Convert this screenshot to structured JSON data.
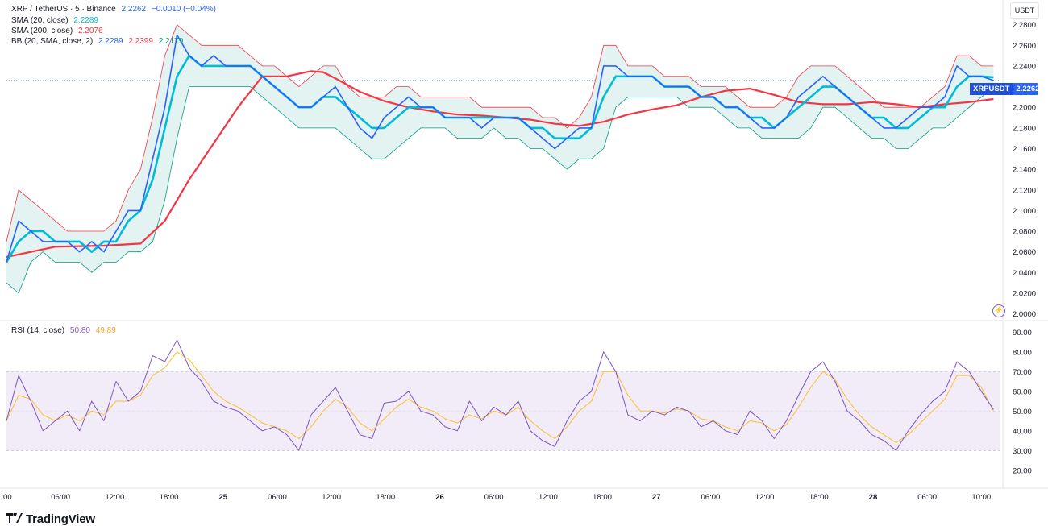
{
  "legend": {
    "symbol": "XRP / TetherUS · 5 · Binance",
    "last": "2.2262",
    "change": "−0.0010 (−0.04%)",
    "sma20_label": "SMA (20, close)",
    "sma20_value": "2.2289",
    "sma200_label": "SMA (200, close)",
    "sma200_value": "2.2076",
    "bb_label": "BB (20, SMA, close, 2)",
    "bb_basis": "2.2289",
    "bb_upper": "2.2399",
    "bb_lower": "2.2179",
    "rsi_label": "RSI (14, close)",
    "rsi_value": "50.80",
    "rsi_ma": "49.89"
  },
  "currency": "USDT",
  "price_tag": {
    "symbol": "XRPUSDT",
    "value": "2.2262"
  },
  "logo": "TradingView",
  "icons": {
    "alert": "lightning-alert-icon",
    "logo": "tradingview-logo-icon"
  },
  "colors": {
    "price": "#2962ff",
    "sma20": "#00bcd4",
    "sma200": "#f23645",
    "bb_upper": "#f23645",
    "bb_lower": "#089981",
    "bb_fill": "#e0f2ef",
    "rsi": "#7e57c2",
    "rsi_ma": "#fbc02d",
    "rsi_band": "#ede7f6"
  },
  "chart_data": {
    "type": "line",
    "x_ticks": [
      ":00",
      "06:00",
      "12:00",
      "18:00",
      "25",
      "06:00",
      "12:00",
      "18:00",
      "26",
      "06:00",
      "12:00",
      "18:00",
      "27",
      "06:00",
      "12:00",
      "18:00",
      "28",
      "06:00",
      "10:00"
    ],
    "price_ticks": [
      "2.2800",
      "2.2600",
      "2.2400",
      "2.2200",
      "2.2000",
      "2.1800",
      "2.1600",
      "2.1400",
      "2.1200",
      "2.1000",
      "2.0800",
      "2.0600",
      "2.0400",
      "2.0200",
      "2.0000"
    ],
    "price_ylim": [
      1.995,
      2.293
    ],
    "rsi_ticks": [
      "90.00",
      "80.00",
      "70.00",
      "60.00",
      "50.00",
      "40.00",
      "30.00",
      "20.00"
    ],
    "rsi_ylim": [
      15,
      95
    ],
    "rsi_bands": [
      70,
      50,
      30
    ],
    "t_range": [
      0,
      81.5
    ],
    "series": [
      {
        "name": "XRP / TetherUS",
        "t": [
          0,
          1,
          2,
          3,
          4,
          5,
          6,
          7,
          8,
          9,
          10,
          11,
          12,
          13,
          14,
          15,
          16,
          17,
          18,
          19,
          20,
          21,
          22,
          23,
          24,
          25,
          26,
          27,
          28,
          29,
          30,
          31,
          32,
          33,
          34,
          35,
          36,
          37,
          38,
          39,
          40,
          41,
          42,
          43,
          44,
          45,
          46,
          47,
          48,
          49,
          50,
          51,
          52,
          53,
          54,
          55,
          56,
          57,
          58,
          59,
          60,
          61,
          62,
          63,
          64,
          65,
          66,
          67,
          68,
          69,
          70,
          71,
          72,
          73,
          74,
          75,
          76,
          77,
          78,
          79,
          80,
          81
        ],
        "values": [
          2.05,
          2.09,
          2.08,
          2.07,
          2.07,
          2.07,
          2.06,
          2.07,
          2.06,
          2.08,
          2.1,
          2.1,
          2.15,
          2.2,
          2.27,
          2.25,
          2.24,
          2.25,
          2.24,
          2.24,
          2.24,
          2.23,
          2.22,
          2.21,
          2.2,
          2.2,
          2.21,
          2.22,
          2.2,
          2.18,
          2.17,
          2.19,
          2.2,
          2.21,
          2.2,
          2.2,
          2.19,
          2.19,
          2.19,
          2.18,
          2.19,
          2.19,
          2.19,
          2.18,
          2.17,
          2.16,
          2.17,
          2.18,
          2.18,
          2.24,
          2.24,
          2.23,
          2.23,
          2.23,
          2.22,
          2.22,
          2.22,
          2.21,
          2.21,
          2.2,
          2.2,
          2.19,
          2.18,
          2.18,
          2.19,
          2.21,
          2.22,
          2.23,
          2.22,
          2.21,
          2.2,
          2.19,
          2.18,
          2.18,
          2.19,
          2.2,
          2.2,
          2.21,
          2.24,
          2.23,
          2.23,
          2.226
        ]
      },
      {
        "name": "SMA (20, close)",
        "t": [
          0,
          1,
          2,
          3,
          4,
          5,
          6,
          7,
          8,
          9,
          10,
          11,
          12,
          13,
          14,
          15,
          16,
          17,
          18,
          19,
          20,
          21,
          22,
          23,
          24,
          25,
          26,
          27,
          28,
          29,
          30,
          31,
          32,
          33,
          34,
          35,
          36,
          37,
          38,
          39,
          40,
          41,
          42,
          43,
          44,
          45,
          46,
          47,
          48,
          49,
          50,
          51,
          52,
          53,
          54,
          55,
          56,
          57,
          58,
          59,
          60,
          61,
          62,
          63,
          64,
          65,
          66,
          67,
          68,
          69,
          70,
          71,
          72,
          73,
          74,
          75,
          76,
          77,
          78,
          79,
          80,
          81
        ],
        "values": [
          2.05,
          2.07,
          2.08,
          2.08,
          2.07,
          2.07,
          2.07,
          2.06,
          2.07,
          2.07,
          2.09,
          2.1,
          2.13,
          2.18,
          2.23,
          2.25,
          2.24,
          2.24,
          2.24,
          2.24,
          2.24,
          2.23,
          2.22,
          2.21,
          2.2,
          2.2,
          2.21,
          2.21,
          2.2,
          2.19,
          2.18,
          2.18,
          2.19,
          2.2,
          2.2,
          2.2,
          2.19,
          2.19,
          2.19,
          2.19,
          2.19,
          2.19,
          2.19,
          2.18,
          2.18,
          2.17,
          2.17,
          2.17,
          2.18,
          2.21,
          2.23,
          2.23,
          2.23,
          2.23,
          2.22,
          2.22,
          2.22,
          2.21,
          2.21,
          2.2,
          2.2,
          2.19,
          2.19,
          2.18,
          2.19,
          2.2,
          2.21,
          2.22,
          2.22,
          2.21,
          2.2,
          2.19,
          2.19,
          2.18,
          2.18,
          2.19,
          2.2,
          2.2,
          2.22,
          2.23,
          2.23,
          2.229
        ]
      },
      {
        "name": "SMA (200, close)",
        "t": [
          0,
          4,
          8,
          11,
          13,
          15,
          17,
          19,
          21,
          23,
          25,
          26,
          27,
          29,
          31,
          33,
          35,
          37,
          39,
          41,
          43,
          45,
          47,
          49,
          51,
          53,
          55,
          57,
          59,
          61,
          63,
          65,
          67,
          69,
          71,
          73,
          75,
          77,
          79,
          81
        ],
        "values": [
          2.055,
          2.065,
          2.066,
          2.068,
          2.09,
          2.13,
          2.165,
          2.2,
          2.23,
          2.23,
          2.235,
          2.234,
          2.228,
          2.215,
          2.206,
          2.2,
          2.196,
          2.193,
          2.192,
          2.19,
          2.188,
          2.184,
          2.182,
          2.186,
          2.193,
          2.198,
          2.202,
          2.21,
          2.216,
          2.218,
          2.212,
          2.205,
          2.203,
          2.203,
          2.205,
          2.203,
          2.2,
          2.203,
          2.205,
          2.208
        ]
      },
      {
        "name": "BB upper",
        "t": [
          0,
          1,
          2,
          3,
          4,
          5,
          6,
          7,
          8,
          9,
          10,
          11,
          12,
          13,
          14,
          15,
          16,
          17,
          18,
          19,
          20,
          21,
          22,
          23,
          24,
          25,
          26,
          27,
          28,
          29,
          30,
          31,
          32,
          33,
          34,
          35,
          36,
          37,
          38,
          39,
          40,
          41,
          42,
          43,
          44,
          45,
          46,
          47,
          48,
          49,
          50,
          51,
          52,
          53,
          54,
          55,
          56,
          57,
          58,
          59,
          60,
          61,
          62,
          63,
          64,
          65,
          66,
          67,
          68,
          69,
          70,
          71,
          72,
          73,
          74,
          75,
          76,
          77,
          78,
          79,
          80,
          81
        ],
        "values": [
          2.07,
          2.12,
          2.11,
          2.1,
          2.09,
          2.08,
          2.08,
          2.08,
          2.08,
          2.09,
          2.12,
          2.14,
          2.19,
          2.25,
          2.28,
          2.27,
          2.26,
          2.26,
          2.26,
          2.26,
          2.25,
          2.24,
          2.24,
          2.23,
          2.22,
          2.23,
          2.24,
          2.24,
          2.22,
          2.21,
          2.21,
          2.21,
          2.22,
          2.22,
          2.21,
          2.21,
          2.21,
          2.21,
          2.21,
          2.2,
          2.2,
          2.2,
          2.2,
          2.2,
          2.19,
          2.19,
          2.18,
          2.19,
          2.21,
          2.26,
          2.26,
          2.24,
          2.24,
          2.24,
          2.23,
          2.23,
          2.23,
          2.22,
          2.22,
          2.22,
          2.21,
          2.2,
          2.2,
          2.2,
          2.21,
          2.23,
          2.24,
          2.24,
          2.24,
          2.23,
          2.22,
          2.21,
          2.2,
          2.2,
          2.2,
          2.2,
          2.21,
          2.22,
          2.25,
          2.25,
          2.24,
          2.24
        ]
      },
      {
        "name": "BB lower",
        "t": [
          0,
          1,
          2,
          3,
          4,
          5,
          6,
          7,
          8,
          9,
          10,
          11,
          12,
          13,
          14,
          15,
          16,
          17,
          18,
          19,
          20,
          21,
          22,
          23,
          24,
          25,
          26,
          27,
          28,
          29,
          30,
          31,
          32,
          33,
          34,
          35,
          36,
          37,
          38,
          39,
          40,
          41,
          42,
          43,
          44,
          45,
          46,
          47,
          48,
          49,
          50,
          51,
          52,
          53,
          54,
          55,
          56,
          57,
          58,
          59,
          60,
          61,
          62,
          63,
          64,
          65,
          66,
          67,
          68,
          69,
          70,
          71,
          72,
          73,
          74,
          75,
          76,
          77,
          78,
          79,
          80,
          81
        ],
        "values": [
          2.03,
          2.02,
          2.05,
          2.06,
          2.05,
          2.05,
          2.05,
          2.04,
          2.05,
          2.05,
          2.06,
          2.06,
          2.07,
          2.11,
          2.17,
          2.22,
          2.22,
          2.22,
          2.22,
          2.22,
          2.22,
          2.21,
          2.2,
          2.19,
          2.18,
          2.18,
          2.18,
          2.18,
          2.17,
          2.16,
          2.15,
          2.15,
          2.16,
          2.17,
          2.18,
          2.18,
          2.18,
          2.17,
          2.17,
          2.17,
          2.18,
          2.17,
          2.17,
          2.16,
          2.16,
          2.15,
          2.14,
          2.15,
          2.15,
          2.16,
          2.2,
          2.21,
          2.21,
          2.21,
          2.21,
          2.21,
          2.2,
          2.2,
          2.2,
          2.19,
          2.18,
          2.18,
          2.17,
          2.17,
          2.17,
          2.17,
          2.18,
          2.2,
          2.2,
          2.19,
          2.18,
          2.17,
          2.17,
          2.16,
          2.16,
          2.17,
          2.18,
          2.18,
          2.19,
          2.2,
          2.21,
          2.218
        ]
      },
      {
        "name": "RSI (14, close)",
        "t": [
          0,
          1,
          2,
          3,
          4,
          5,
          6,
          7,
          8,
          9,
          10,
          11,
          12,
          13,
          14,
          15,
          16,
          17,
          18,
          19,
          20,
          21,
          22,
          23,
          24,
          25,
          26,
          27,
          28,
          29,
          30,
          31,
          32,
          33,
          34,
          35,
          36,
          37,
          38,
          39,
          40,
          41,
          42,
          43,
          44,
          45,
          46,
          47,
          48,
          49,
          50,
          51,
          52,
          53,
          54,
          55,
          56,
          57,
          58,
          59,
          60,
          61,
          62,
          63,
          64,
          65,
          66,
          67,
          68,
          69,
          70,
          71,
          72,
          73,
          74,
          75,
          76,
          77,
          78,
          79,
          80,
          81
        ],
        "values": [
          45,
          68,
          55,
          40,
          45,
          50,
          40,
          55,
          45,
          65,
          55,
          60,
          78,
          75,
          86,
          72,
          65,
          55,
          52,
          50,
          45,
          40,
          42,
          38,
          30,
          48,
          55,
          62,
          50,
          38,
          36,
          54,
          55,
          60,
          50,
          48,
          42,
          40,
          55,
          45,
          52,
          48,
          55,
          40,
          35,
          32,
          45,
          55,
          60,
          80,
          70,
          48,
          45,
          50,
          48,
          52,
          50,
          42,
          45,
          40,
          38,
          50,
          45,
          36,
          45,
          58,
          70,
          75,
          65,
          50,
          45,
          38,
          35,
          30,
          40,
          48,
          55,
          60,
          75,
          70,
          60,
          50.8
        ]
      },
      {
        "name": "RSI-based MA",
        "t": [
          0,
          1,
          2,
          3,
          4,
          5,
          6,
          7,
          8,
          9,
          10,
          11,
          12,
          13,
          14,
          15,
          16,
          17,
          18,
          19,
          20,
          21,
          22,
          23,
          24,
          25,
          26,
          27,
          28,
          29,
          30,
          31,
          32,
          33,
          34,
          35,
          36,
          37,
          38,
          39,
          40,
          41,
          42,
          43,
          44,
          45,
          46,
          47,
          48,
          49,
          50,
          51,
          52,
          53,
          54,
          55,
          56,
          57,
          58,
          59,
          60,
          61,
          62,
          63,
          64,
          65,
          66,
          67,
          68,
          69,
          70,
          71,
          72,
          73,
          74,
          75,
          76,
          77,
          78,
          79,
          80,
          81
        ],
        "values": [
          45,
          58,
          56,
          48,
          45,
          48,
          45,
          50,
          48,
          55,
          55,
          58,
          68,
          72,
          80,
          76,
          68,
          60,
          55,
          52,
          48,
          44,
          42,
          40,
          36,
          42,
          50,
          56,
          52,
          44,
          40,
          46,
          52,
          56,
          52,
          50,
          46,
          44,
          48,
          46,
          50,
          48,
          52,
          45,
          40,
          36,
          42,
          50,
          55,
          70,
          70,
          58,
          50,
          50,
          49,
          51,
          50,
          46,
          45,
          42,
          40,
          45,
          44,
          40,
          43,
          52,
          62,
          70,
          66,
          56,
          48,
          42,
          38,
          34,
          38,
          44,
          50,
          56,
          68,
          68,
          62,
          49.89
        ]
      }
    ]
  }
}
